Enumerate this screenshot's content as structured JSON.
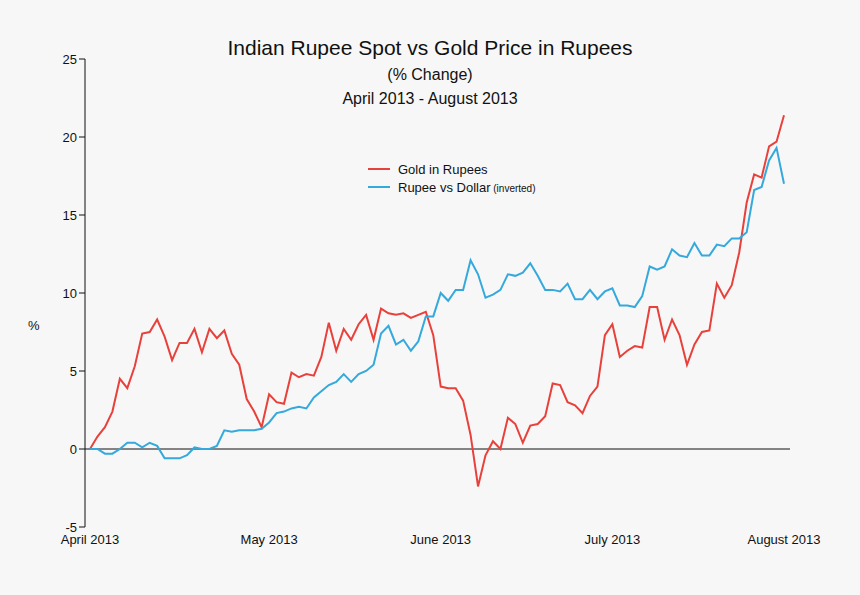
{
  "chart_data": {
    "type": "line",
    "title": "Indian Rupee Spot vs Gold Price in Rupees",
    "subtitle": [
      "(% Change)",
      "April 2013 - August 2013"
    ],
    "y_label": "%",
    "categories": [
      "April 2013",
      null,
      null,
      null,
      null,
      null,
      null,
      null,
      null,
      null,
      null,
      null,
      null,
      null,
      null,
      null,
      null,
      null,
      null,
      null,
      null,
      null,
      null,
      null,
      "May 2013",
      null,
      null,
      null,
      null,
      null,
      null,
      null,
      null,
      null,
      null,
      null,
      null,
      null,
      null,
      null,
      null,
      null,
      null,
      null,
      null,
      null,
      null,
      "June 2013",
      null,
      null,
      null,
      null,
      null,
      null,
      null,
      null,
      null,
      null,
      null,
      null,
      null,
      null,
      null,
      null,
      null,
      null,
      null,
      null,
      null,
      null,
      "July 2013",
      null,
      null,
      null,
      null,
      null,
      null,
      null,
      null,
      null,
      null,
      null,
      null,
      null,
      null,
      null,
      null,
      null,
      null,
      null,
      null,
      null,
      null,
      "August 2013"
    ],
    "series": [
      {
        "name": "Gold in Rupees",
        "color": "#e8413b",
        "values": [
          0,
          0.8,
          1.4,
          2.4,
          4.5,
          3.9,
          5.3,
          7.4,
          7.5,
          8.3,
          7.2,
          5.7,
          6.8,
          6.8,
          7.7,
          6.2,
          7.7,
          7.1,
          7.6,
          6.1,
          5.4,
          3.2,
          2.4,
          1.4,
          3.5,
          3.0,
          2.9,
          4.9,
          4.6,
          4.8,
          4.7,
          5.9,
          8.1,
          6.3,
          7.7,
          7.0,
          8.0,
          8.6,
          7.0,
          9.0,
          8.7,
          8.6,
          8.7,
          8.4,
          8.6,
          8.8,
          7.3,
          4.0,
          3.9,
          3.9,
          3.1,
          0.9,
          -2.4,
          -0.4,
          0.5,
          0.0,
          2.0,
          1.6,
          0.4,
          1.5,
          1.6,
          2.1,
          4.2,
          4.1,
          3.0,
          2.8,
          2.3,
          3.4,
          4.0,
          7.3,
          8.0,
          5.9,
          6.3,
          6.6,
          6.5,
          9.1,
          9.1,
          7.0,
          8.3,
          7.3,
          5.4,
          6.7,
          7.5,
          7.6,
          10.6,
          9.7,
          10.5,
          12.6,
          15.8,
          17.6,
          17.4,
          19.4,
          19.7,
          21.4
        ]
      },
      {
        "name": "Rupee vs Dollar (inverted)",
        "color": "#35a9dc",
        "values": [
          0,
          0.0,
          -0.3,
          -0.3,
          0.0,
          0.4,
          0.4,
          0.1,
          0.4,
          0.2,
          -0.6,
          -0.6,
          -0.6,
          -0.4,
          0.1,
          0.0,
          0.0,
          0.2,
          1.2,
          1.1,
          1.2,
          1.2,
          1.2,
          1.3,
          1.7,
          2.3,
          2.4,
          2.6,
          2.7,
          2.6,
          3.3,
          3.7,
          4.1,
          4.3,
          4.8,
          4.3,
          4.8,
          5.0,
          5.4,
          7.4,
          7.9,
          6.7,
          7.0,
          6.3,
          6.9,
          8.5,
          8.5,
          10.0,
          9.5,
          10.2,
          10.2,
          12.1,
          11.2,
          9.7,
          9.9,
          10.2,
          11.2,
          11.1,
          11.3,
          11.9,
          11.1,
          10.2,
          10.2,
          10.1,
          10.6,
          9.6,
          9.6,
          10.2,
          9.6,
          10.1,
          10.3,
          9.2,
          9.2,
          9.1,
          9.8,
          11.7,
          11.5,
          11.7,
          12.8,
          12.4,
          12.3,
          13.2,
          12.4,
          12.4,
          13.1,
          13.0,
          13.5,
          13.5,
          13.9,
          16.6,
          16.8,
          18.5,
          19.3,
          17.0
        ]
      }
    ],
    "ylim": [
      -5,
      25
    ],
    "yticks": [
      -5,
      0,
      5,
      10,
      15,
      20,
      25
    ],
    "grid": false,
    "legend": "upper center"
  }
}
